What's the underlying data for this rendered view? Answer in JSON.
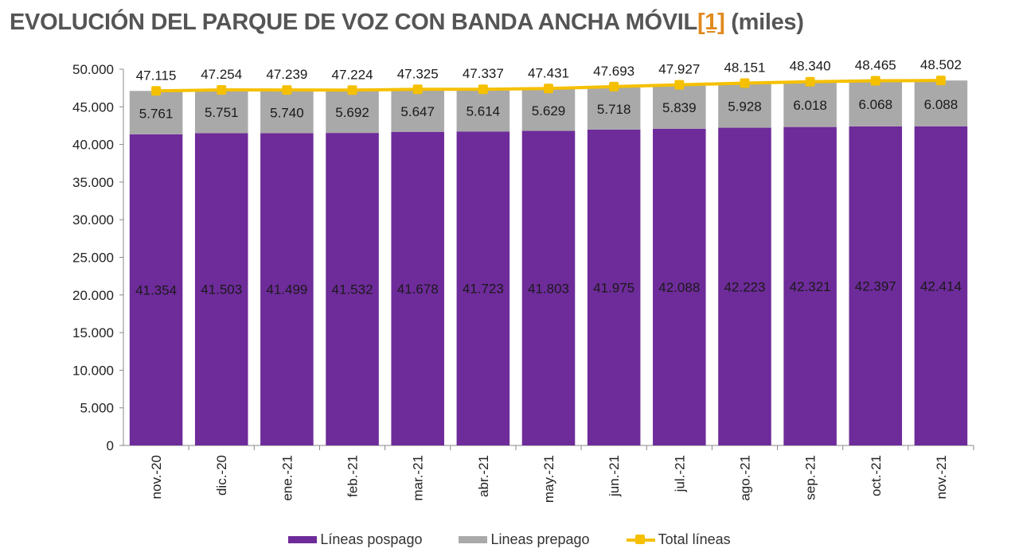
{
  "title": "EVOLUCIÓN DEL PARQUE DE VOZ CON BANDA ANCHA MÓVIL",
  "title_ref": "[1]",
  "title_suffix": " (miles)",
  "colors": {
    "pospago": "#6e2b9a",
    "prepago": "#a9a9a9",
    "total": "#f5c000"
  },
  "chart_data": {
    "type": "bar",
    "stacked": true,
    "categories": [
      "nov.-20",
      "dic.-20",
      "ene.-21",
      "feb.-21",
      "mar.-21",
      "abr.-21",
      "may.-21",
      "jun.-21",
      "jul.-21",
      "ago.-21",
      "sep.-21",
      "oct.-21",
      "nov.-21"
    ],
    "series": [
      {
        "name": "Líneas pospago",
        "type": "bar",
        "values": [
          41354,
          41503,
          41499,
          41532,
          41678,
          41723,
          41803,
          41975,
          42088,
          42223,
          42321,
          42397,
          42414
        ],
        "labels": [
          "41.354",
          "41.503",
          "41.499",
          "41.532",
          "41.678",
          "41.723",
          "41.803",
          "41.975",
          "42.088",
          "42.223",
          "42.321",
          "42.397",
          "42.414"
        ]
      },
      {
        "name": "Lineas prepago",
        "type": "bar",
        "values": [
          5761,
          5751,
          5740,
          5692,
          5647,
          5614,
          5629,
          5718,
          5839,
          5928,
          6018,
          6068,
          6088
        ],
        "labels": [
          "5.761",
          "5.751",
          "5.740",
          "5.692",
          "5.647",
          "5.614",
          "5.629",
          "5.718",
          "5.839",
          "5.928",
          "6.018",
          "6.068",
          "6.088"
        ]
      },
      {
        "name": "Total líneas",
        "type": "line",
        "values": [
          47115,
          47254,
          47239,
          47224,
          47325,
          47337,
          47431,
          47693,
          47927,
          48151,
          48340,
          48465,
          48502
        ],
        "labels": [
          "47.115",
          "47.254",
          "47.239",
          "47.224",
          "47.325",
          "47.337",
          "47.431",
          "47.693",
          "47.927",
          "48.151",
          "48.340",
          "48.465",
          "48.502"
        ]
      }
    ],
    "ylim": [
      0,
      50000
    ],
    "yticks": [
      0,
      5000,
      10000,
      15000,
      20000,
      25000,
      30000,
      35000,
      40000,
      45000,
      50000
    ],
    "ytick_labels": [
      "0",
      "5.000",
      "10.000",
      "15.000",
      "20.000",
      "25.000",
      "30.000",
      "35.000",
      "40.000",
      "45.000",
      "50.000"
    ],
    "grid": false,
    "legend_position": "bottom"
  }
}
